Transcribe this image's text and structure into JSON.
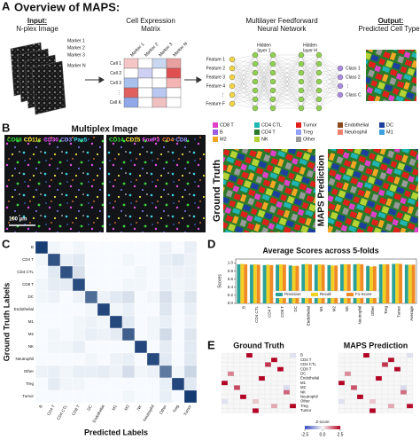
{
  "panel_a": {
    "letter": "A",
    "title": "Overview of MAPS:",
    "input_label": "Input:",
    "input_text": "N-plex Image",
    "markers": [
      "Marker 1",
      "Marker 2",
      "Marker 3",
      "Marker N"
    ],
    "matrix_title": [
      "Cell Expression",
      "Matrix"
    ],
    "matrix_cols": [
      "Marker 1",
      "Marker 2",
      "Marker 3",
      "Marker N"
    ],
    "matrix_rows": [
      "Cell 1",
      "Cell 2",
      "Cell 3",
      "⋮",
      "Cell K"
    ],
    "nn_title": [
      "Multilayer Feedforward",
      "Neural Network"
    ],
    "hidden_1": [
      "Hidden",
      "layer 1"
    ],
    "hidden_h": [
      "Hidden",
      "layer H"
    ],
    "features": [
      "Feature 1",
      "Feature 2",
      "Feature 3",
      "Feature 4",
      "⋮",
      "Feature F"
    ],
    "classes": [
      "Class 1",
      "Class 2",
      "⋮",
      "Class C"
    ],
    "output_label": "Output:",
    "output_text": "Predicted Cell Types"
  },
  "panel_b": {
    "letter": "B",
    "title": "Multiplex Image",
    "channels": [
      {
        "name": "CD68",
        "color": "#33dd33"
      },
      {
        "name": "CD11c",
        "color": "#ffee33"
      },
      {
        "name": "CD30",
        "color": "#ff55ff"
      },
      {
        "name": "CD3",
        "color": "#9999ff"
      },
      {
        "name": "Pax5",
        "color": "#33ddee"
      },
      {
        "name": "CD14",
        "color": "#33dd33"
      },
      {
        "name": "CD15",
        "color": "#ffee33"
      },
      {
        "name": "FoxP3",
        "color": "#ff55ff"
      },
      {
        "name": "CD4",
        "color": "#ff8833"
      },
      {
        "name": "CD8",
        "color": "#9999ff"
      }
    ],
    "scale_bar": "100 µm",
    "ground_truth": "Ground Truth",
    "prediction": "MAPS Prediction",
    "cell_types": [
      {
        "name": "CD8 T",
        "color": "#e040c8"
      },
      {
        "name": "CD4 CTL",
        "color": "#1fb5b5"
      },
      {
        "name": "Tumor",
        "color": "#e0201b"
      },
      {
        "name": "Endothelial",
        "color": "#8c4a1e"
      },
      {
        "name": "DC",
        "color": "#1d3f9e"
      },
      {
        "name": "B",
        "color": "#9b5de5"
      },
      {
        "name": "CD4 T",
        "color": "#2a7a2a"
      },
      {
        "name": "Treg",
        "color": "#8fa0ff"
      },
      {
        "name": "Neutrophil",
        "color": "#f08070"
      },
      {
        "name": "M1",
        "color": "#3aa0e0"
      },
      {
        "name": "M2",
        "color": "#f5a623"
      },
      {
        "name": "NK",
        "color": "#b5d334"
      },
      {
        "name": "Other",
        "color": "#999999"
      }
    ]
  },
  "chart_data": [
    {
      "type": "heatmap",
      "letter": "C",
      "y_label": "Ground Truth Labels",
      "x_label": "Predicted Labels",
      "categories": [
        "B",
        "CD4 T",
        "CD4 CTL",
        "CD8 T",
        "DC",
        "Endothelial",
        "M1",
        "M2",
        "NK",
        "Neutrophil",
        "Other",
        "Treg",
        "Tumor"
      ],
      "color": "#08306b",
      "values": [
        [
          0.92,
          0.01,
          0,
          0.01,
          0,
          0,
          0,
          0,
          0,
          0,
          0.02,
          0,
          0.03
        ],
        [
          0.01,
          0.79,
          0.03,
          0.05,
          0,
          0,
          0,
          0.01,
          0,
          0,
          0.03,
          0.05,
          0.02
        ],
        [
          0,
          0.05,
          0.8,
          0.08,
          0,
          0,
          0,
          0,
          0.01,
          0,
          0.02,
          0.02,
          0.02
        ],
        [
          0.01,
          0.04,
          0.04,
          0.83,
          0,
          0,
          0,
          0.01,
          0.01,
          0,
          0.03,
          0.01,
          0.02
        ],
        [
          0.01,
          0.02,
          0,
          0.02,
          0.64,
          0.02,
          0.05,
          0.08,
          0,
          0.01,
          0.08,
          0.01,
          0.06
        ],
        [
          0,
          0,
          0,
          0,
          0.01,
          0.86,
          0.01,
          0.03,
          0,
          0,
          0.06,
          0,
          0.03
        ],
        [
          0,
          0,
          0,
          0.01,
          0.02,
          0.01,
          0.85,
          0.05,
          0,
          0.01,
          0.03,
          0,
          0.02
        ],
        [
          0,
          0.01,
          0,
          0.01,
          0.03,
          0.02,
          0.04,
          0.72,
          0,
          0.01,
          0.1,
          0,
          0.06
        ],
        [
          0,
          0.01,
          0.01,
          0.03,
          0,
          0,
          0,
          0,
          0.86,
          0,
          0.04,
          0,
          0.05
        ],
        [
          0,
          0,
          0,
          0,
          0.01,
          0,
          0.02,
          0.03,
          0,
          0.84,
          0.05,
          0,
          0.05
        ],
        [
          0.02,
          0.03,
          0.01,
          0.03,
          0.03,
          0.04,
          0.02,
          0.09,
          0.01,
          0.02,
          0.57,
          0.01,
          0.12
        ],
        [
          0,
          0.04,
          0.01,
          0.01,
          0,
          0,
          0,
          0,
          0,
          0,
          0.03,
          0.86,
          0.05
        ],
        [
          0,
          0,
          0,
          0,
          0,
          0,
          0,
          0.01,
          0,
          0,
          0.03,
          0,
          0.93
        ]
      ]
    },
    {
      "type": "bar",
      "letter": "D",
      "title": "Average Scores across 5-folds",
      "y_label": "Scores",
      "categories": [
        "B",
        "CD4 CTL",
        "CD4 T",
        "CD8 T",
        "DC",
        "Endothelial",
        "M1",
        "M2",
        "NK",
        "Neutrophil",
        "Other",
        "Treg",
        "Tumor",
        "Average"
      ],
      "series": [
        {
          "name": "Precision",
          "color": "#2aa198",
          "values": [
            0.97,
            0.96,
            0.95,
            0.96,
            0.94,
            0.97,
            0.96,
            0.95,
            0.97,
            0.97,
            0.93,
            0.97,
            0.98,
            0.96
          ]
        },
        {
          "name": "Recall",
          "color": "#f2d024",
          "values": [
            0.98,
            0.97,
            0.96,
            0.97,
            0.93,
            0.98,
            0.97,
            0.94,
            0.97,
            0.98,
            0.91,
            0.97,
            0.99,
            0.96
          ]
        },
        {
          "name": "F1-Score",
          "color": "#f08a24",
          "values": [
            0.97,
            0.96,
            0.95,
            0.96,
            0.93,
            0.97,
            0.96,
            0.94,
            0.97,
            0.97,
            0.92,
            0.97,
            0.98,
            0.96
          ]
        }
      ],
      "ylim": [
        0,
        1.1
      ],
      "yticks": [
        {
          "value": 0,
          "label": "0.0"
        },
        0.2,
        0.4,
        0.6,
        0.8,
        {
          "value": 1,
          "label": "1.0"
        }
      ],
      "legend": "lower center"
    },
    {
      "type": "heatmap-pair",
      "letter": "E",
      "titles": [
        "Ground Truth",
        "MAPS Prediction"
      ],
      "rows": [
        "B",
        "CD4 T",
        "CD4 CTL",
        "CD8 T",
        "DC",
        "Endothelial",
        "M1",
        "M2",
        "NK",
        "Neutrophil",
        "Other",
        "Treg",
        "Tumor"
      ],
      "grids": [
        [
          [
            0,
            0,
            0,
            0,
            2.5,
            0,
            0,
            0,
            0,
            0,
            0,
            -0.3
          ],
          [
            0,
            0,
            0,
            0,
            0,
            0,
            0,
            0,
            2.5,
            0,
            0,
            0
          ],
          [
            0,
            0,
            0,
            0,
            0,
            0,
            0,
            2.0,
            0,
            0,
            0,
            0
          ],
          [
            0,
            0,
            0,
            0,
            0,
            0,
            0,
            0,
            0,
            2.5,
            0,
            0
          ],
          [
            0,
            1.2,
            0,
            0,
            0,
            0,
            0,
            0,
            0,
            0,
            0,
            0
          ],
          [
            0,
            0,
            0,
            0,
            0,
            0,
            2.5,
            0,
            0,
            0,
            0,
            0
          ],
          [
            2.5,
            0,
            0,
            0,
            0,
            0,
            0,
            0,
            0,
            0,
            0,
            0
          ],
          [
            0,
            0,
            1.8,
            0,
            0,
            0,
            0,
            0,
            0,
            0,
            -0.4,
            0
          ],
          [
            0,
            0,
            0,
            0,
            0,
            0,
            0,
            0,
            0,
            0,
            1.5,
            0
          ],
          [
            0,
            0,
            0,
            2.5,
            0,
            0,
            0,
            0,
            0,
            0,
            0,
            0
          ],
          [
            -0.3,
            0,
            0,
            0,
            0,
            0.5,
            0,
            0,
            0,
            0,
            0,
            0
          ],
          [
            0,
            0,
            0,
            0,
            0,
            0,
            0,
            0,
            0.8,
            0,
            0,
            2.5
          ],
          [
            0,
            0,
            0,
            0,
            0,
            2.5,
            0,
            0,
            0,
            0,
            0,
            0
          ]
        ],
        [
          [
            0,
            0,
            0,
            0,
            2.5,
            0,
            0,
            0,
            0,
            0,
            0,
            -0.3
          ],
          [
            0,
            0,
            0,
            0,
            0,
            0,
            0,
            0,
            2.4,
            0,
            0,
            0
          ],
          [
            0,
            0,
            0,
            0,
            0,
            0,
            0,
            2.0,
            0,
            0,
            0,
            0
          ],
          [
            0,
            0,
            0,
            0,
            0,
            0,
            0,
            0,
            0,
            2.5,
            0,
            0
          ],
          [
            0,
            1.1,
            0,
            0,
            0,
            0,
            0,
            0,
            0,
            0,
            0,
            0
          ],
          [
            0,
            0,
            0,
            0,
            0,
            0,
            2.5,
            0,
            0,
            0,
            0,
            0
          ],
          [
            2.5,
            0,
            0,
            0,
            0,
            0,
            0,
            0,
            0,
            0,
            0,
            0
          ],
          [
            0,
            0,
            1.7,
            0,
            0,
            0,
            0,
            0,
            0,
            0,
            -0.4,
            0
          ],
          [
            0,
            0,
            0,
            0,
            0,
            0,
            0,
            0,
            0,
            0,
            1.4,
            0
          ],
          [
            0,
            0,
            0,
            2.5,
            0,
            0,
            0,
            0,
            0,
            0,
            0,
            0
          ],
          [
            -0.3,
            0,
            0,
            0,
            0,
            0.5,
            0,
            0,
            0,
            0,
            0,
            0
          ],
          [
            0,
            0,
            0,
            0,
            0,
            0,
            0,
            0,
            0.8,
            0,
            0,
            2.4
          ],
          [
            0,
            0,
            0,
            0,
            0,
            2.5,
            0,
            0,
            0,
            0,
            0,
            0
          ]
        ]
      ],
      "colorbar": {
        "label": "Z-score",
        "lim": [
          -2.5,
          2.5
        ],
        "ticks": [
          -2.5,
          {
            "value": 0,
            "label": "0.0"
          },
          2.5
        ]
      }
    }
  ]
}
